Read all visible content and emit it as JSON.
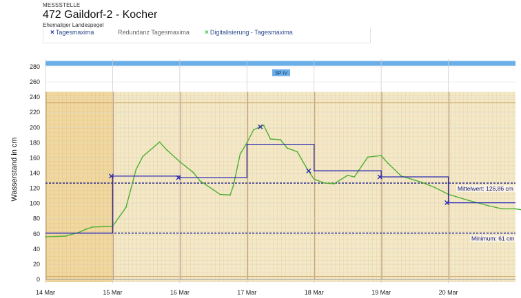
{
  "header": {
    "kicker": "MESSSTELLE",
    "title": "472 Gaildorf-2 - Kocher",
    "subtitle": "Ehemaliger Landespegel"
  },
  "legend": [
    {
      "label": "Tagesmaxima",
      "marker": "×",
      "color": "#2b2bb0"
    },
    {
      "label": "Redundanz Tagesmaxima",
      "marker": "",
      "color": "#666666"
    },
    {
      "label": "Digitalisierung - Tagesmaxima",
      "marker": "×",
      "color": "#3fbf3f"
    }
  ],
  "chart_data": {
    "type": "line",
    "ylabel": "Wasserstand in cm",
    "ylim": [
      0,
      290
    ],
    "y_ticks": [
      0,
      20,
      40,
      60,
      80,
      100,
      120,
      140,
      160,
      180,
      200,
      220,
      240,
      260,
      280
    ],
    "x_ticks": [
      "14 Mar",
      "15 Mar",
      "16 Mar",
      "17 Mar",
      "18 Mar",
      "19 Mar",
      "20 Mar"
    ],
    "grid": true,
    "band": {
      "label": "SP IV",
      "y": 284,
      "color": "#6aaee8"
    },
    "thresholds": [
      {
        "label": "Mittelwert: 126,86 cm",
        "y": 126.86,
        "color": "#1a1a8a"
      },
      {
        "label": "Minimum: 61 cm",
        "y": 61,
        "color": "#1a1a8a"
      }
    ],
    "colors": {
      "tagesmaxima": "#2b2bb0",
      "digitalisierung": "#4caf30",
      "paper": "#f4e6c0"
    },
    "series": [
      {
        "name": "Tagesmaxima",
        "x": [
          0,
          1,
          2,
          3,
          4,
          5,
          6,
          7
        ],
        "values": [
          61,
          136,
          134,
          178,
          143,
          135,
          101,
          101
        ],
        "markers": [
          {
            "x": 0.98,
            "y": 136
          },
          {
            "x": 1.98,
            "y": 134
          },
          {
            "x": 3.2,
            "y": 201
          },
          {
            "x": 3.92,
            "y": 143
          },
          {
            "x": 4.98,
            "y": 135
          },
          {
            "x": 5.98,
            "y": 101
          }
        ]
      },
      {
        "name": "Digitalisierung - Tagesmaxima",
        "x": [
          0,
          0.3,
          0.5,
          0.6,
          0.7,
          1.0,
          1.2,
          1.35,
          1.45,
          1.7,
          1.8,
          2.0,
          2.2,
          2.3,
          2.5,
          2.6,
          2.75,
          2.8,
          2.9,
          3.0,
          3.1,
          3.25,
          3.35,
          3.5,
          3.6,
          3.75,
          3.9,
          4.0,
          4.15,
          4.3,
          4.5,
          4.6,
          4.8,
          5.0,
          5.1,
          5.3,
          5.45,
          5.6,
          5.8,
          6.0,
          6.3,
          6.6,
          6.8,
          7.0,
          7.2,
          7.3
        ],
        "values": [
          56,
          57,
          62,
          66,
          69,
          70,
          95,
          145,
          162,
          181,
          171,
          155,
          141,
          130,
          118,
          112,
          111,
          124,
          165,
          180,
          197,
          203,
          185,
          184,
          173,
          168,
          145,
          132,
          127,
          126,
          137,
          135,
          161,
          163,
          153,
          136,
          132,
          128,
          121,
          112,
          104,
          97,
          93,
          93,
          90,
          92
        ]
      }
    ]
  }
}
